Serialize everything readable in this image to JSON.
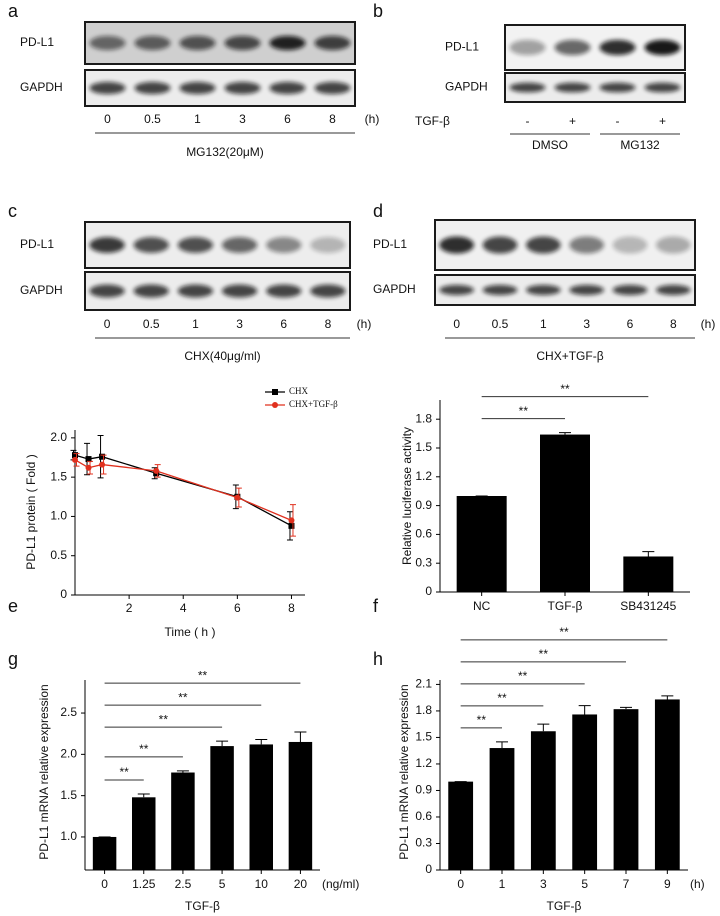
{
  "blots": [
    {
      "label": "a",
      "rows": [
        "PD-L1",
        "GAPDH"
      ],
      "lanes": [
        "0",
        "0.5",
        "1",
        "3",
        "6",
        "8"
      ],
      "unit": "(h)",
      "treatment": "MG132(20μM)"
    },
    {
      "label": "b",
      "rows": [
        "PD-L1",
        "GAPDH"
      ],
      "factor": "TGF-β",
      "lanes": [
        "-",
        "+",
        "-",
        "+"
      ],
      "groups": [
        "DMSO",
        "MG132"
      ]
    },
    {
      "label": "c",
      "rows": [
        "PD-L1",
        "GAPDH"
      ],
      "lanes": [
        "0",
        "0.5",
        "1",
        "3",
        "6",
        "8"
      ],
      "unit": "(h)",
      "treatment": "CHX(40μg/ml)"
    },
    {
      "label": "d",
      "rows": [
        "PD-L1",
        "GAPDH"
      ],
      "lanes": [
        "0",
        "0.5",
        "1",
        "3",
        "6",
        "8"
      ],
      "unit": "(h)",
      "treatment": "CHX+TGF-β"
    }
  ],
  "chart_data": [
    {
      "label": "e",
      "type": "line",
      "x": [
        0,
        0.5,
        1,
        3,
        6,
        8
      ],
      "series": [
        {
          "name": "CHX",
          "color": "#000000",
          "marker": "square",
          "values": [
            1.78,
            1.73,
            1.76,
            1.55,
            1.25,
            0.88
          ],
          "errors": [
            0.06,
            0.2,
            0.27,
            0.07,
            0.15,
            0.18
          ]
        },
        {
          "name": "CHX+TGF-β",
          "color": "#e0301e",
          "marker": "circle",
          "values": [
            1.72,
            1.62,
            1.66,
            1.58,
            1.24,
            0.95
          ],
          "errors": [
            0.08,
            0.08,
            0.12,
            0.08,
            0.12,
            0.2
          ]
        }
      ],
      "xlim": [
        0,
        8.5
      ],
      "xticks": [
        2,
        4,
        6,
        8
      ],
      "ylim": [
        0,
        2.1
      ],
      "yticks": [
        0,
        0.5,
        {
          "value": 1,
          "label": "1.0"
        },
        1.5,
        {
          "value": 2,
          "label": "2.0"
        }
      ],
      "x_label": "Time ( h )",
      "y_label": "PD-L1 protein ( Fold )",
      "legend": "upper right"
    },
    {
      "label": "f",
      "type": "bar",
      "categories": [
        "NC",
        "TGF-β",
        "SB431245"
      ],
      "values": [
        1.0,
        1.64,
        0.37
      ],
      "errors": [
        0,
        0.02,
        0.05
      ],
      "color": "#000000",
      "ylim": [
        0,
        2.0
      ],
      "yticks": [
        0,
        0.3,
        0.6,
        0.9,
        1.2,
        1.5,
        1.8
      ],
      "y_label": "Relative luciferase activity",
      "significance": [
        {
          "label": "**",
          "span": [
            0,
            1
          ]
        },
        {
          "label": "**",
          "span": [
            0,
            2
          ]
        }
      ]
    },
    {
      "label": "g",
      "type": "bar",
      "categories": [
        "0",
        "1.25",
        "2.5",
        "5",
        "10",
        "20"
      ],
      "x_unit": "(ng/ml)",
      "values": [
        1.0,
        1.48,
        1.78,
        2.1,
        2.12,
        2.15
      ],
      "errors": [
        0,
        0.04,
        0.02,
        0.06,
        0.06,
        0.12
      ],
      "color": "#000000",
      "ylim": [
        0.6,
        2.9
      ],
      "yticks": [
        {
          "value": 1,
          "label": "1.0"
        },
        1.5,
        {
          "value": 2,
          "label": "2.0"
        },
        2.5
      ],
      "x_label": "TGF-β",
      "y_label": "PD-L1 mRNA relative expression",
      "significance": [
        {
          "label": "**",
          "span": [
            0,
            1
          ]
        },
        {
          "label": "**",
          "span": [
            0,
            2
          ]
        },
        {
          "label": "**",
          "span": [
            0,
            3
          ]
        },
        {
          "label": "**",
          "span": [
            0,
            4
          ]
        },
        {
          "label": "**",
          "span": [
            0,
            5
          ]
        }
      ]
    },
    {
      "label": "h",
      "type": "bar",
      "categories": [
        "0",
        "1",
        "3",
        "5",
        "7",
        "9"
      ],
      "x_unit": "(h)",
      "values": [
        1.0,
        1.38,
        1.57,
        1.76,
        1.82,
        1.93
      ],
      "errors": [
        0,
        0.07,
        0.08,
        0.1,
        0.02,
        0.04
      ],
      "color": "#000000",
      "ylim": [
        0,
        2.15
      ],
      "yticks": [
        0,
        0.3,
        0.6,
        0.9,
        1.2,
        1.5,
        1.8,
        2.1
      ],
      "x_label": "TGF-β",
      "y_label": "PD-L1 mRNA relative expression",
      "significance": [
        {
          "label": "**",
          "span": [
            0,
            1
          ]
        },
        {
          "label": "**",
          "span": [
            0,
            2
          ]
        },
        {
          "label": "**",
          "span": [
            0,
            3
          ]
        },
        {
          "label": "**",
          "span": [
            0,
            4
          ]
        },
        {
          "label": "**",
          "span": [
            0,
            5
          ]
        }
      ]
    }
  ]
}
